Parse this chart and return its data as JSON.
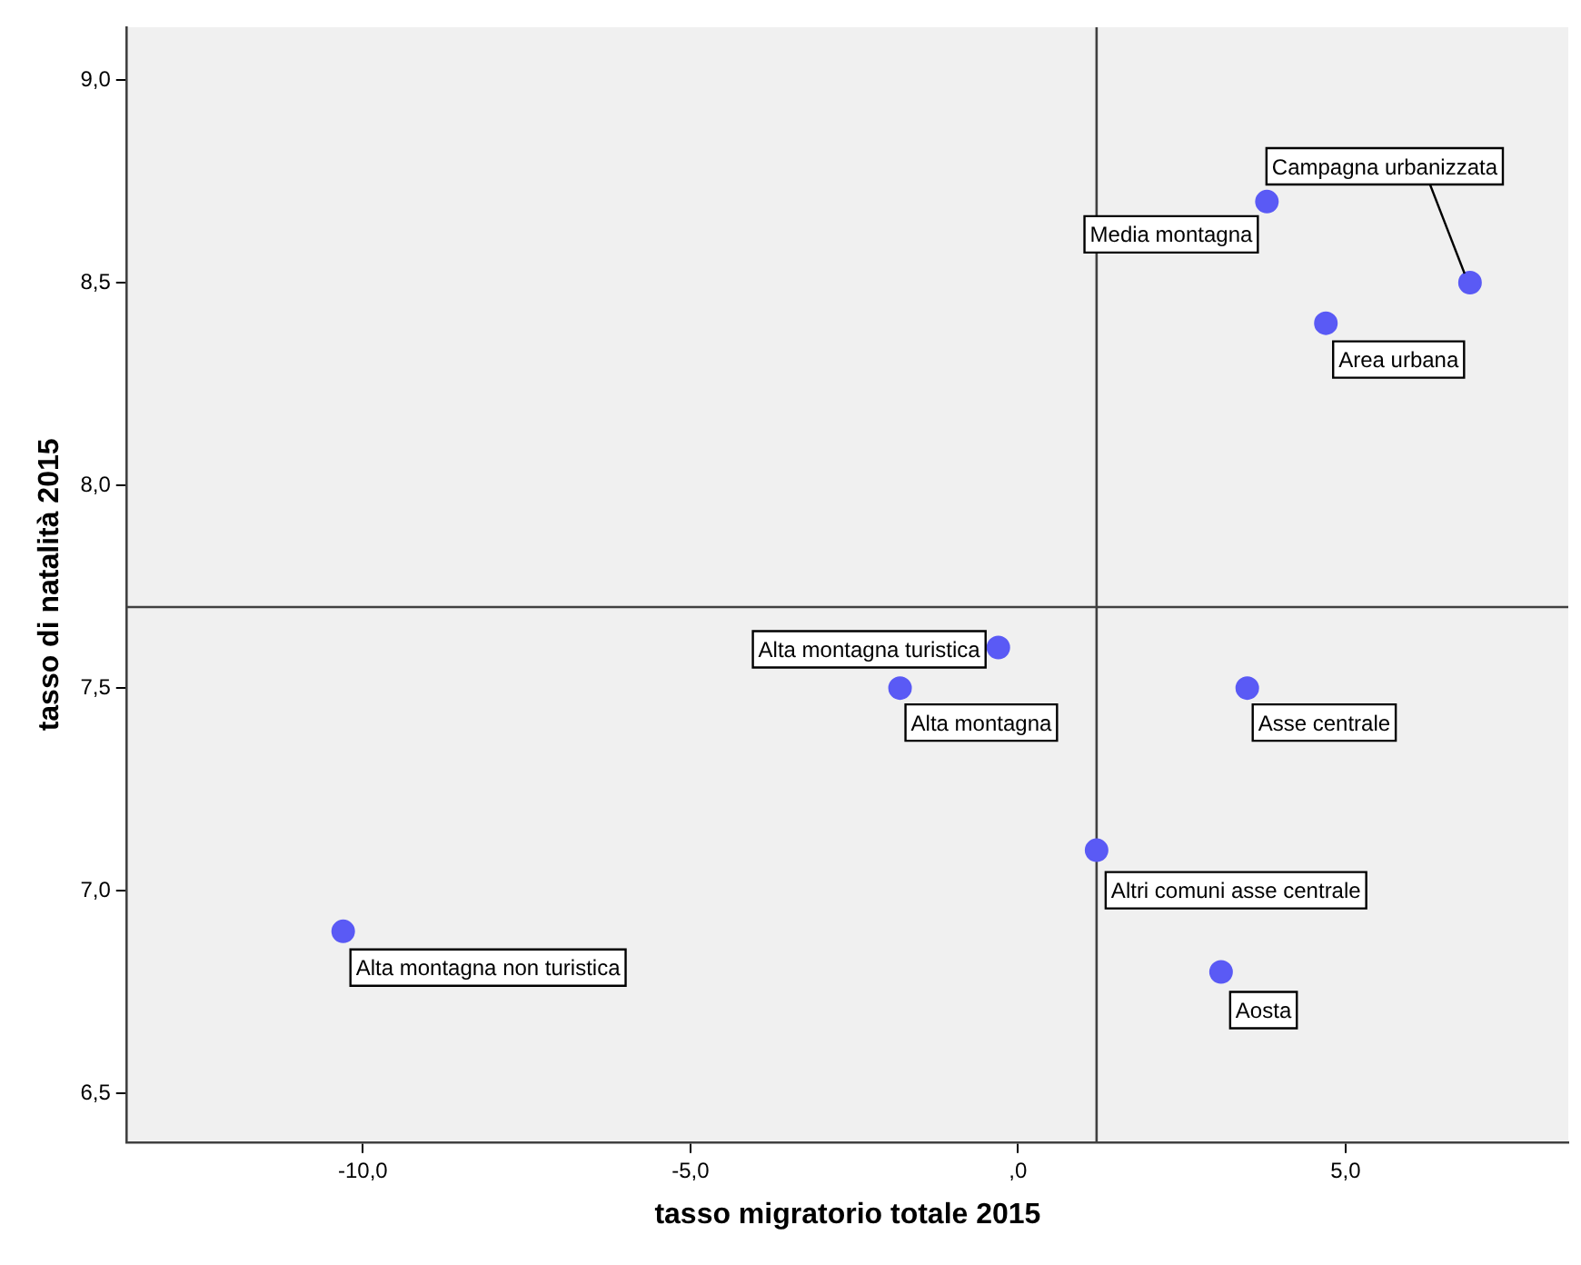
{
  "chart_data": {
    "type": "scatter",
    "xlabel": "tasso migratorio totale 2015",
    "ylabel": "tasso di natalità 2015",
    "x": [
      3.8,
      6.9,
      4.7,
      -0.3,
      -1.8,
      3.5,
      1.2,
      -10.3,
      3.1
    ],
    "values": [
      8.7,
      8.5,
      8.4,
      7.6,
      7.5,
      7.5,
      7.1,
      6.9,
      6.8
    ],
    "color": "#5a5af5",
    "marker": "circle",
    "grid": false,
    "legend": false,
    "xlim": [
      -13.6,
      8.4
    ],
    "ylim": [
      6.38,
      9.13
    ],
    "xticks": [
      {
        "value": -10,
        "label": "-10,0"
      },
      {
        "value": -5,
        "label": "-5,0"
      },
      {
        "value": 0,
        "label": ",0"
      },
      {
        "value": 5,
        "label": "5,0"
      }
    ],
    "yticks": [
      {
        "value": 6.5,
        "label": "6,5"
      },
      {
        "value": 7,
        "label": "7,0"
      },
      {
        "value": 7.5,
        "label": "7,5"
      },
      {
        "value": 8,
        "label": "8,0"
      },
      {
        "value": 8.5,
        "label": "8,5"
      },
      {
        "value": 9,
        "label": "9,0"
      }
    ],
    "ref_lines": [
      {
        "axis": "x",
        "value": 1.2,
        "color": "#404040"
      },
      {
        "axis": "y",
        "value": 7.7,
        "color": "#404040"
      }
    ],
    "annotations": [
      {
        "text": "Media montagna",
        "x": 3.8,
        "y": 8.7
      },
      {
        "text": "Campagna urbanizzata",
        "x": 6.9,
        "y": 8.5
      },
      {
        "text": "Area urbana",
        "x": 4.7,
        "y": 8.4
      },
      {
        "text": "Alta montagna turistica",
        "x": -0.3,
        "y": 7.6
      },
      {
        "text": "Alta montagna",
        "x": -1.8,
        "y": 7.5
      },
      {
        "text": "Asse centrale",
        "x": 3.5,
        "y": 7.5
      },
      {
        "text": "Altri comuni asse centrale",
        "x": 1.2,
        "y": 7.1
      },
      {
        "text": "Alta montagna non turistica",
        "x": -10.3,
        "y": 6.9
      },
      {
        "text": "Aosta",
        "x": 3.1,
        "y": 6.8
      }
    ]
  }
}
